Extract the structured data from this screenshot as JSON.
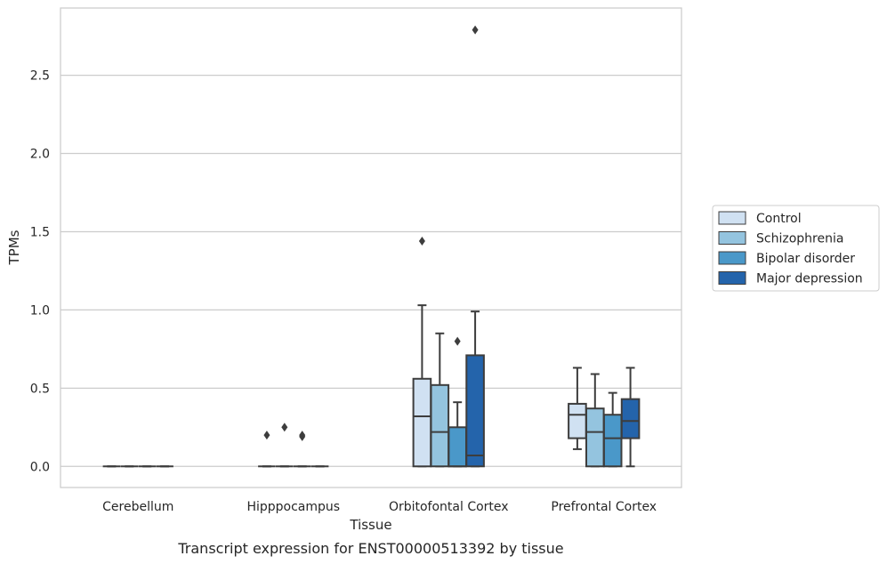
{
  "chart_data": {
    "type": "box",
    "title": "",
    "xlabel": "Tissue",
    "ylabel": "TPMs",
    "caption": "Transcript expression for ENST00000513392 by tissue",
    "ylim": [
      -0.135,
      2.93
    ],
    "yticks": [
      0.0,
      0.5,
      1.0,
      1.5,
      2.0,
      2.5
    ],
    "ytick_labels": [
      "0.0",
      "0.5",
      "1.0",
      "1.5",
      "2.0",
      "2.5"
    ],
    "grid": "horizontal",
    "legend_position": "right",
    "categories": [
      "Cerebellum",
      "Hipppocampus",
      "Orbitofontal Cortex",
      "Prefrontal Cortex"
    ],
    "series": [
      {
        "name": "Control",
        "color": "#d0e1f2",
        "boxes": [
          {
            "q1": 0,
            "median": 0,
            "q3": 0,
            "whislo": 0,
            "whishi": 0,
            "fliers": []
          },
          {
            "q1": 0,
            "median": 0,
            "q3": 0,
            "whislo": 0,
            "whishi": 0,
            "fliers": [
              0.2
            ]
          },
          {
            "q1": 0,
            "median": 0.32,
            "q3": 0.56,
            "whislo": 0,
            "whishi": 1.03,
            "fliers": [
              1.44
            ]
          },
          {
            "q1": 0.18,
            "median": 0.33,
            "q3": 0.4,
            "whislo": 0.11,
            "whishi": 0.63,
            "fliers": []
          }
        ]
      },
      {
        "name": "Schizophrenia",
        "color": "#94c4df",
        "boxes": [
          {
            "q1": 0,
            "median": 0,
            "q3": 0,
            "whislo": 0,
            "whishi": 0,
            "fliers": []
          },
          {
            "q1": 0,
            "median": 0,
            "q3": 0,
            "whislo": 0,
            "whishi": 0,
            "fliers": [
              0.25
            ]
          },
          {
            "q1": 0,
            "median": 0.22,
            "q3": 0.52,
            "whislo": 0,
            "whishi": 0.85,
            "fliers": []
          },
          {
            "q1": 0,
            "median": 0.22,
            "q3": 0.37,
            "whislo": 0,
            "whishi": 0.59,
            "fliers": []
          }
        ]
      },
      {
        "name": "Bipolar disorder",
        "color": "#4a98c9",
        "boxes": [
          {
            "q1": 0,
            "median": 0,
            "q3": 0,
            "whislo": 0,
            "whishi": 0,
            "fliers": []
          },
          {
            "q1": 0,
            "median": 0,
            "q3": 0,
            "whislo": 0,
            "whishi": 0,
            "fliers": [
              0.2,
              0.19
            ]
          },
          {
            "q1": 0,
            "median": 0,
            "q3": 0.25,
            "whislo": 0,
            "whishi": 0.41,
            "fliers": [
              0.8
            ]
          },
          {
            "q1": 0,
            "median": 0.18,
            "q3": 0.33,
            "whislo": 0,
            "whishi": 0.47,
            "fliers": []
          }
        ]
      },
      {
        "name": "Major depression",
        "color": "#2464ab",
        "boxes": [
          {
            "q1": 0,
            "median": 0,
            "q3": 0,
            "whislo": 0,
            "whishi": 0,
            "fliers": []
          },
          {
            "q1": 0,
            "median": 0,
            "q3": 0,
            "whislo": 0,
            "whishi": 0,
            "fliers": []
          },
          {
            "q1": 0,
            "median": 0.07,
            "q3": 0.71,
            "whislo": 0,
            "whishi": 0.99,
            "fliers": [
              2.79
            ]
          },
          {
            "q1": 0.18,
            "median": 0.29,
            "q3": 0.43,
            "whislo": 0,
            "whishi": 0.63,
            "fliers": []
          }
        ]
      }
    ]
  }
}
